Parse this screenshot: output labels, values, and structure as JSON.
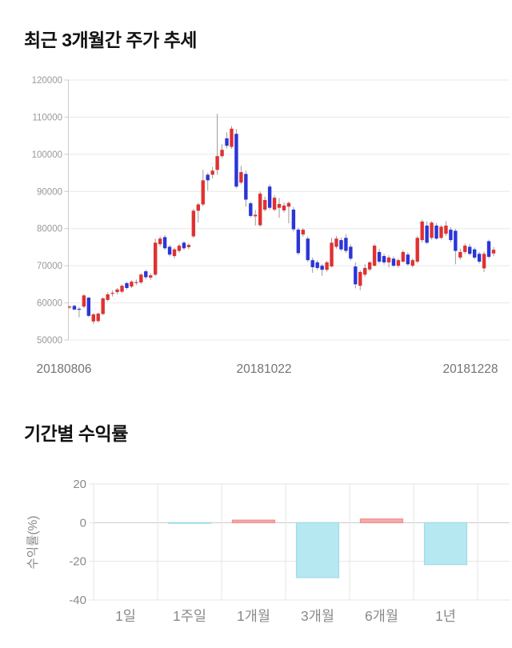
{
  "price_section": {
    "title": "최근 3개월간 주가 추세"
  },
  "returns_section": {
    "title": "기간별 수익률"
  },
  "chart_data": [
    {
      "type": "candlestick",
      "title": "최근 3개월간 주가 추세",
      "ylim": [
        50000,
        120000
      ],
      "y_ticks": [
        120000,
        110000,
        100000,
        90000,
        80000,
        70000,
        60000,
        50000
      ],
      "x_tick_labels": [
        "20180806",
        "20181022",
        "20181228"
      ],
      "grid": "horizontal-only",
      "legend": "none",
      "colors": {
        "up": "#e03131",
        "down": "#2b35d8",
        "wick": "#9a9a9a",
        "grid": "#e8e8e8",
        "axis": "#cccccc",
        "tick_text": "#999999",
        "date_text": "#737373"
      },
      "candles_format": "[open, high, low, close] in KRW",
      "candles": [
        [
          58900,
          59300,
          58400,
          59000
        ],
        [
          59200,
          59500,
          58000,
          58200
        ],
        [
          58400,
          58900,
          56100,
          58300
        ],
        [
          59000,
          62300,
          58600,
          62000
        ],
        [
          61400,
          61600,
          56200,
          56500
        ],
        [
          55000,
          57200,
          54300,
          56900
        ],
        [
          55100,
          57400,
          54700,
          57100
        ],
        [
          57000,
          61500,
          56700,
          61200
        ],
        [
          60800,
          62800,
          60400,
          62300
        ],
        [
          62500,
          63400,
          61700,
          62700
        ],
        [
          62900,
          64000,
          62300,
          63600
        ],
        [
          63000,
          64900,
          62600,
          64600
        ],
        [
          65300,
          65700,
          63600,
          64000
        ],
        [
          64400,
          66100,
          64000,
          65700
        ],
        [
          65500,
          66300,
          64800,
          65600
        ],
        [
          65500,
          68000,
          65100,
          67600
        ],
        [
          68500,
          68900,
          66300,
          66900
        ],
        [
          66800,
          67900,
          66200,
          67400
        ],
        [
          67600,
          77300,
          67200,
          76200
        ],
        [
          75800,
          77900,
          75200,
          77300
        ],
        [
          77700,
          78300,
          74300,
          74700
        ],
        [
          75100,
          75600,
          72500,
          73000
        ],
        [
          72600,
          74900,
          72000,
          74400
        ],
        [
          74000,
          75900,
          73500,
          75400
        ],
        [
          76200,
          76600,
          74200,
          74700
        ],
        [
          75000,
          76000,
          74400,
          75600
        ],
        [
          77900,
          85300,
          77500,
          84800
        ],
        [
          84800,
          86900,
          81600,
          86500
        ],
        [
          86500,
          95800,
          86000,
          93000
        ],
        [
          94500,
          95000,
          90200,
          93000
        ],
        [
          94500,
          96600,
          93500,
          95600
        ],
        [
          95800,
          110900,
          94500,
          99500
        ],
        [
          99500,
          102700,
          99000,
          101200
        ],
        [
          104300,
          105900,
          101600,
          102300
        ],
        [
          102000,
          107600,
          101500,
          106900
        ],
        [
          105500,
          106800,
          90800,
          91300
        ],
        [
          92400,
          96900,
          91900,
          95200
        ],
        [
          94700,
          95600,
          85900,
          87800
        ],
        [
          86800,
          87300,
          83000,
          83400
        ],
        [
          83300,
          85000,
          80800,
          83700
        ],
        [
          80900,
          90000,
          80500,
          89400
        ],
        [
          85100,
          88600,
          84600,
          87700
        ],
        [
          91300,
          91900,
          85000,
          85600
        ],
        [
          85100,
          89000,
          84700,
          88300
        ],
        [
          85600,
          88200,
          82900,
          86600
        ],
        [
          84900,
          87000,
          84300,
          86200
        ],
        [
          85900,
          87300,
          81400,
          86900
        ],
        [
          85100,
          85800,
          79200,
          79800
        ],
        [
          79700,
          80200,
          72900,
          73400
        ],
        [
          78400,
          80100,
          77800,
          79700
        ],
        [
          77300,
          77900,
          71000,
          71500
        ],
        [
          71500,
          72200,
          68100,
          69600
        ],
        [
          70900,
          71500,
          68900,
          69400
        ],
        [
          70000,
          70500,
          67300,
          68900
        ],
        [
          68900,
          71300,
          68400,
          70900
        ],
        [
          69800,
          77500,
          69500,
          76200
        ],
        [
          75100,
          78000,
          74600,
          77300
        ],
        [
          76900,
          77600,
          74000,
          74400
        ],
        [
          77500,
          78500,
          73400,
          74000
        ],
        [
          75100,
          75700,
          71400,
          71900
        ],
        [
          69800,
          70900,
          63900,
          65000
        ],
        [
          64600,
          68800,
          63400,
          68300
        ],
        [
          67600,
          70400,
          67000,
          69400
        ],
        [
          69000,
          71300,
          68500,
          70900
        ],
        [
          70000,
          75800,
          69700,
          75400
        ],
        [
          73700,
          74600,
          70600,
          71100
        ],
        [
          72600,
          73200,
          70300,
          70900
        ],
        [
          70900,
          72800,
          69600,
          72200
        ],
        [
          71900,
          72500,
          69700,
          70000
        ],
        [
          70000,
          72000,
          69500,
          71500
        ],
        [
          71100,
          74200,
          70800,
          73700
        ],
        [
          73000,
          73600,
          70000,
          70400
        ],
        [
          70000,
          72000,
          69500,
          71500
        ],
        [
          71100,
          78000,
          70700,
          77500
        ],
        [
          76900,
          82400,
          76300,
          81900
        ],
        [
          80800,
          81900,
          75800,
          76200
        ],
        [
          77500,
          82000,
          77000,
          81600
        ],
        [
          80800,
          81500,
          77000,
          77300
        ],
        [
          77500,
          80900,
          77100,
          80500
        ],
        [
          78600,
          82000,
          78000,
          80800
        ],
        [
          79700,
          80400,
          76300,
          76900
        ],
        [
          79400,
          79900,
          70400,
          74000
        ],
        [
          72200,
          74600,
          71600,
          73700
        ],
        [
          73700,
          76000,
          73200,
          75400
        ],
        [
          75100,
          75800,
          72800,
          73200
        ],
        [
          74400,
          74900,
          71800,
          72200
        ],
        [
          73200,
          73700,
          70600,
          71100
        ],
        [
          69300,
          73800,
          68300,
          73200
        ],
        [
          76600,
          77000,
          71900,
          72400
        ],
        [
          73300,
          75000,
          72600,
          74300
        ]
      ]
    },
    {
      "type": "bar",
      "title": "기간별 수익률",
      "categories": [
        "1일",
        "1주일",
        "1개월",
        "3개월",
        "6개월",
        "1년"
      ],
      "values": [
        0.0,
        -0.3,
        1.3,
        -28.4,
        1.9,
        -21.7
      ],
      "ylabel": "수익률(%)",
      "y_ticks": [
        20,
        0,
        -20,
        -40
      ],
      "ylim": [
        -40,
        20
      ],
      "grid": "on",
      "legend": "none",
      "colors": {
        "positive_fill": "#f7abab",
        "positive_border": "#f08c8c",
        "negative_fill": "#b5e8f1",
        "negative_border": "#9fdbe8",
        "grid": "#e6e6e6",
        "zero_line": "#c9c9c9",
        "tick_text": "#8a8a8a",
        "category_text": "#8a8a8a"
      }
    }
  ]
}
